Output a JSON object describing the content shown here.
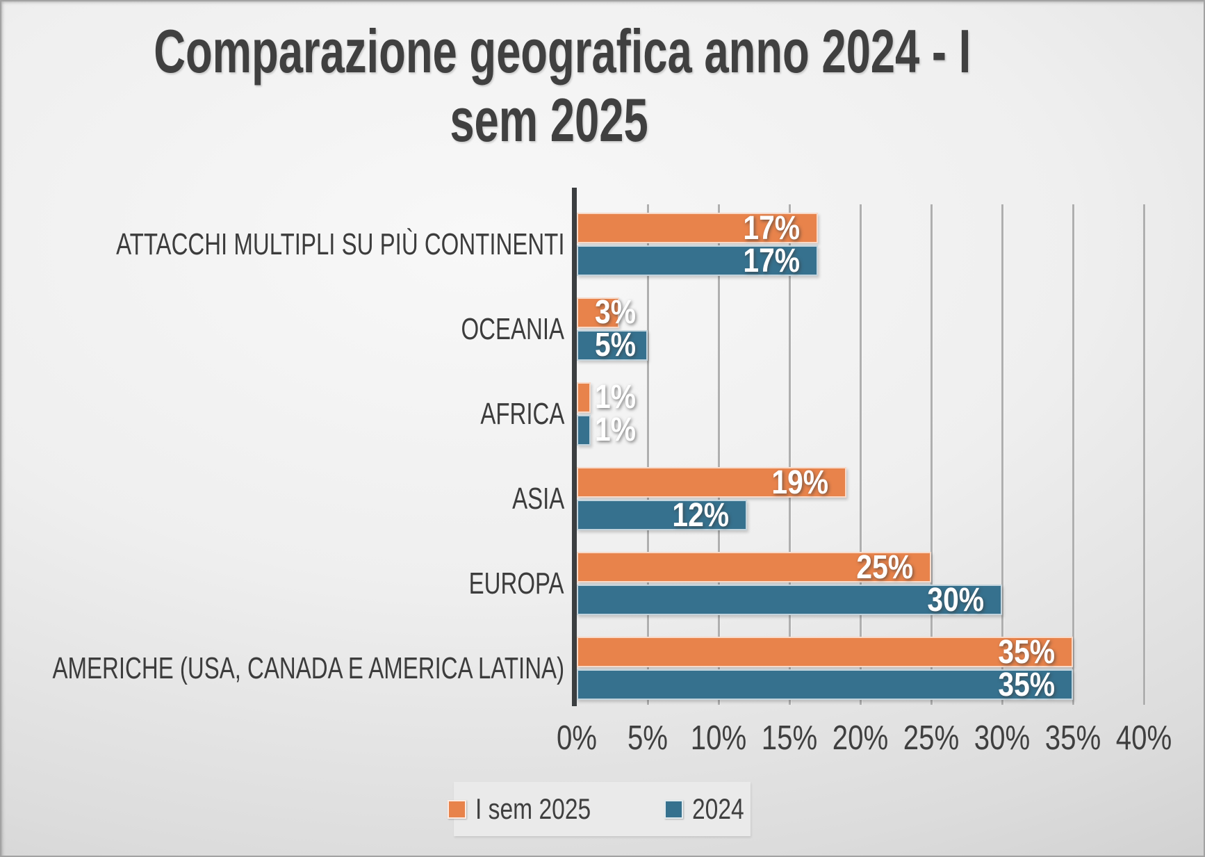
{
  "chart_data": {
    "type": "bar",
    "orientation": "horizontal-grouped",
    "title": "Comparazione geografica anno 2024 - I sem 2025",
    "title_lines": [
      "Comparazione geografica anno 2024 - I",
      "sem 2025"
    ],
    "categories": [
      "ATTACCHI MULTIPLI SU PIÙ CONTINENTI",
      "OCEANIA",
      "AFRICA",
      "ASIA",
      "EUROPA",
      "AMERICHE (USA, CANADA E AMERICA LATINA)"
    ],
    "series": [
      {
        "name": "I sem 2025",
        "color": "#E8834B",
        "values": [
          17,
          3,
          1,
          19,
          25,
          35
        ],
        "data_labels": [
          "17%",
          "3%",
          "1%",
          "19%",
          "25%",
          "35%"
        ]
      },
      {
        "name": "2024",
        "color": "#36718E",
        "values": [
          17,
          5,
          1,
          12,
          30,
          35
        ],
        "data_labels": [
          "17%",
          "5%",
          "1%",
          "12%",
          "30%",
          "35%"
        ]
      }
    ],
    "xlim": [
      0,
      40
    ],
    "x_ticks": [
      "0%",
      "5%",
      "10%",
      "15%",
      "20%",
      "25%",
      "30%",
      "35%",
      "40%"
    ],
    "gridlines": true,
    "legend_position": "bottom",
    "legend_entries": [
      "I sem 2025",
      "2024"
    ],
    "styles": {
      "axis_line_color": "#3B3E40",
      "gridline_color": "#AFAFAF",
      "text_color": "#3F3F3F",
      "data_label_color": "#FFFFFF",
      "legend_background": "#EAEAEA",
      "background_inner": "#F8F8F8",
      "background_outer": "#C3C3C3"
    }
  }
}
